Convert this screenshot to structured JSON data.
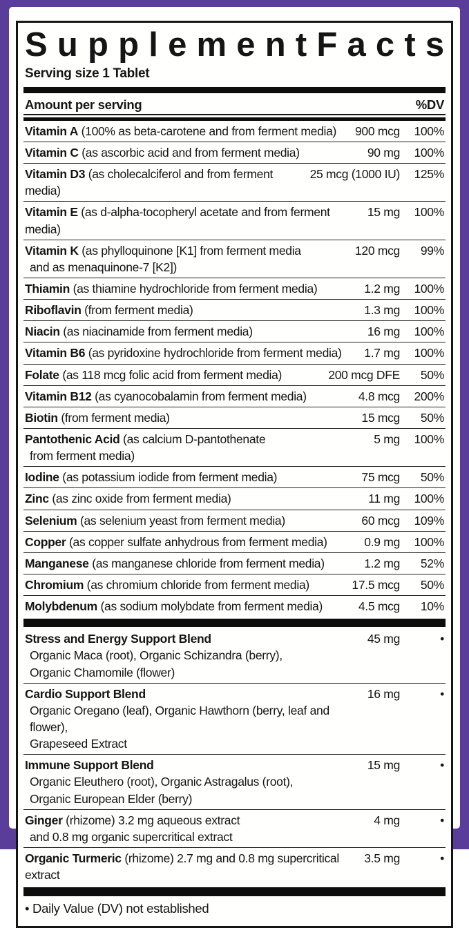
{
  "colors": {
    "frame_purple": "#5a3d9a",
    "text_black": "#151515",
    "paper_white": "#fefefc"
  },
  "title": "Supplement Facts",
  "serving_size": "Serving size 1 Tablet",
  "header": {
    "amount_label": "Amount per serving",
    "dv_label": "%DV"
  },
  "nutrients": [
    {
      "name": "Vitamin A",
      "desc": "(100% as beta-carotene and from ferment media)",
      "amount": "900 mcg",
      "dv": "100%"
    },
    {
      "name": "Vitamin C",
      "desc": "(as ascorbic acid and from ferment media)",
      "amount": "90 mg",
      "dv": "100%"
    },
    {
      "name": "Vitamin D3",
      "desc": "(as cholecalciferol and from ferment media)",
      "amount": "25 mcg (1000 IU)",
      "dv": "125%"
    },
    {
      "name": "Vitamin E",
      "desc": "(as d-alpha-tocopheryl acetate and from ferment media)",
      "amount": "15 mg",
      "dv": "100%"
    },
    {
      "name": "Vitamin K",
      "desc": "(as phylloquinone [K1] from ferment media",
      "amount": "120 mcg",
      "dv": "99%",
      "cont": [
        "and as menaquinone-7 [K2])"
      ]
    },
    {
      "name": "Thiamin",
      "desc": "(as thiamine hydrochloride from ferment media)",
      "amount": "1.2 mg",
      "dv": "100%"
    },
    {
      "name": "Riboflavin",
      "desc": "(from ferment media)",
      "amount": "1.3 mg",
      "dv": "100%"
    },
    {
      "name": "Niacin",
      "desc": "(as niacinamide from ferment media)",
      "amount": "16 mg",
      "dv": "100%"
    },
    {
      "name": "Vitamin B6",
      "desc": "(as pyridoxine hydrochloride from ferment media)",
      "amount": "1.7 mg",
      "dv": "100%"
    },
    {
      "name": "Folate",
      "desc": "(as 118 mcg folic acid from ferment media)",
      "amount": "200 mcg DFE",
      "dv": "50%"
    },
    {
      "name": "Vitamin B12",
      "desc": "(as cyanocobalamin from ferment media)",
      "amount": "4.8 mcg",
      "dv": "200%"
    },
    {
      "name": "Biotin",
      "desc": "(from ferment media)",
      "amount": "15 mcg",
      "dv": "50%"
    },
    {
      "name": "Pantothenic Acid",
      "desc": "(as calcium D-pantothenate",
      "amount": "5 mg",
      "dv": "100%",
      "cont": [
        "from ferment media)"
      ]
    },
    {
      "name": "Iodine",
      "desc": "(as potassium iodide from ferment media)",
      "amount": "75 mcg",
      "dv": "50%"
    },
    {
      "name": "Zinc",
      "desc": "(as zinc oxide from ferment media)",
      "amount": "11 mg",
      "dv": "100%"
    },
    {
      "name": "Selenium",
      "desc": "(as selenium yeast from ferment media)",
      "amount": "60 mcg",
      "dv": "109%"
    },
    {
      "name": "Copper",
      "desc": "(as copper sulfate anhydrous from ferment media)",
      "amount": "0.9 mg",
      "dv": "100%"
    },
    {
      "name": "Manganese",
      "desc": "(as manganese chloride from ferment media)",
      "amount": "1.2 mg",
      "dv": "52%"
    },
    {
      "name": "Chromium",
      "desc": "(as chromium chloride from ferment media)",
      "amount": "17.5 mcg",
      "dv": "50%"
    },
    {
      "name": "Molybdenum",
      "desc": "(as sodium molybdate from ferment media)",
      "amount": "4.5 mcg",
      "dv": "10%"
    }
  ],
  "blends": [
    {
      "name": "Stress and Energy Support Blend",
      "desc": "",
      "amount": "45 mg",
      "dv": "•",
      "cont": [
        "Organic Maca (root), Organic Schizandra (berry),",
        "Organic Chamomile (flower)"
      ]
    },
    {
      "name": "Cardio Support Blend",
      "desc": "",
      "amount": "16 mg",
      "dv": "•",
      "cont": [
        "Organic Oregano (leaf), Organic Hawthorn (berry, leaf and flower),",
        "Grapeseed Extract"
      ]
    },
    {
      "name": "Immune Support Blend",
      "desc": "",
      "amount": "15 mg",
      "dv": "•",
      "cont": [
        "Organic Eleuthero (root), Organic Astragalus (root),",
        "Organic European Elder (berry)"
      ]
    },
    {
      "name": "Ginger",
      "desc": "(rhizome) 3.2 mg aqueous extract",
      "amount": "4 mg",
      "dv": "•",
      "cont": [
        "and 0.8 mg organic supercritical extract"
      ]
    },
    {
      "name": "Organic Turmeric",
      "desc": "(rhizome) 2.7 mg and 0.8 mg supercritical extract",
      "amount": "3.5 mg",
      "dv": "•"
    }
  ],
  "footnote": "• Daily Value (DV) not established"
}
